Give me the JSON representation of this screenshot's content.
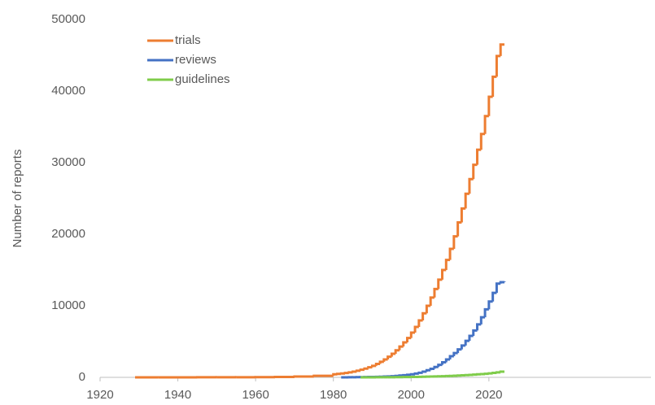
{
  "chart_data": {
    "type": "line",
    "step": true,
    "y_label": "Number  of reports",
    "x": [
      1929,
      1935,
      1940,
      1945,
      1950,
      1955,
      1960,
      1965,
      1970,
      1975,
      1980,
      1981,
      1982,
      1983,
      1984,
      1985,
      1986,
      1987,
      1988,
      1989,
      1990,
      1991,
      1992,
      1993,
      1994,
      1995,
      1996,
      1997,
      1998,
      1999,
      2000,
      2001,
      2002,
      2003,
      2004,
      2005,
      2006,
      2007,
      2008,
      2009,
      2010,
      2011,
      2012,
      2013,
      2014,
      2015,
      2016,
      2017,
      2018,
      2019,
      2020,
      2021,
      2022,
      2023,
      2024
    ],
    "series": [
      {
        "name": "trials",
        "color": "#ed7d31",
        "values": [
          0,
          2,
          5,
          8,
          12,
          20,
          35,
          60,
          110,
          220,
          420,
          480,
          540,
          610,
          700,
          800,
          920,
          1060,
          1220,
          1400,
          1600,
          1880,
          2180,
          2500,
          2880,
          3300,
          3780,
          4300,
          4880,
          5500,
          6250,
          7050,
          7950,
          8950,
          10000,
          11150,
          12350,
          13650,
          15000,
          16400,
          17950,
          19700,
          21650,
          23600,
          25650,
          27700,
          29700,
          31800,
          34000,
          36500,
          39200,
          42000,
          44900,
          46500,
          46500
        ]
      },
      {
        "name": "reviews",
        "color": "#4472c4",
        "values": [
          null,
          null,
          null,
          null,
          null,
          null,
          null,
          null,
          null,
          null,
          null,
          null,
          0,
          5,
          10,
          15,
          22,
          30,
          40,
          50,
          60,
          75,
          90,
          110,
          130,
          160,
          200,
          250,
          300,
          360,
          430,
          520,
          640,
          800,
          1000,
          1200,
          1450,
          1750,
          2100,
          2500,
          2950,
          3400,
          3900,
          4450,
          5100,
          5800,
          6550,
          7400,
          8400,
          9500,
          10600,
          11800,
          13100,
          13300,
          13400
        ]
      },
      {
        "name": "guidelines",
        "color": "#7fcc4a",
        "values": [
          null,
          null,
          null,
          null,
          null,
          null,
          null,
          null,
          null,
          null,
          null,
          null,
          null,
          null,
          null,
          null,
          null,
          0,
          2,
          4,
          6,
          8,
          10,
          13,
          16,
          20,
          25,
          30,
          36,
          43,
          50,
          60,
          70,
          82,
          95,
          110,
          125,
          142,
          160,
          180,
          200,
          225,
          250,
          280,
          310,
          345,
          380,
          420,
          460,
          500,
          550,
          620,
          700,
          800,
          null
        ]
      }
    ],
    "xlim": [
      1920,
      2060
    ],
    "xticks": [
      1920,
      1940,
      1960,
      1980,
      2000,
      2020
    ],
    "ylim": [
      0,
      50000
    ],
    "yticks": [
      0,
      10000,
      20000,
      30000,
      40000,
      50000
    ],
    "grid": false,
    "legend": "upper left"
  }
}
